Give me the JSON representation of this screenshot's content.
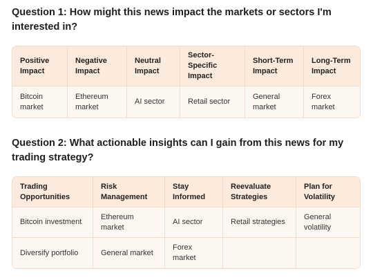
{
  "q1": {
    "title": "Question 1: How might this news impact the markets or sectors I'm interested in?",
    "headers": [
      "Positive Impact",
      "Negative Impact",
      "Neutral Impact",
      "Sector-Specific Impact",
      "Short-Term Impact",
      "Long-Term Impact"
    ],
    "rows": [
      [
        "Bitcoin market",
        "Ethereum market",
        "AI sector",
        "Retail sector",
        "General market",
        "Forex market"
      ]
    ]
  },
  "q2": {
    "title": "Question 2: What actionable insights can I gain from this news for my trading strategy?",
    "headers": [
      "Trading Opportunities",
      "Risk Management",
      "Stay Informed",
      "Reevaluate Strategies",
      "Plan for Volatility"
    ],
    "rows": [
      [
        "Bitcoin investment",
        "Ethereum market",
        "AI sector",
        "Retail strategies",
        "General volatility"
      ],
      [
        "Diversify portfolio",
        "General market",
        "Forex market",
        "",
        ""
      ]
    ]
  }
}
